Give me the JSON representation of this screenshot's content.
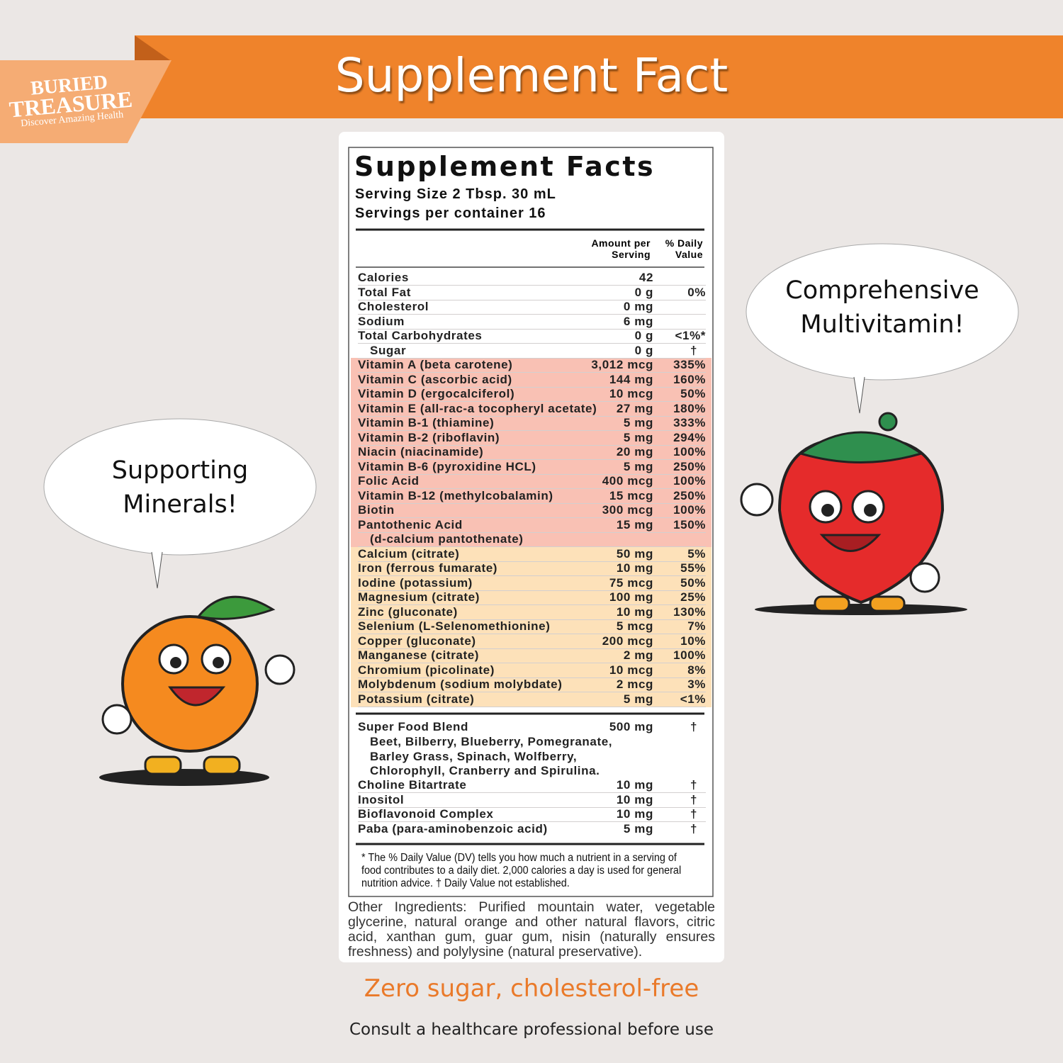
{
  "brand": {
    "name_top": "BURIED",
    "name_bottom": "TREASURE",
    "tagline": "Discover Amazing Health"
  },
  "banner_title": "Supplement Fact",
  "facts": {
    "title": "Supplement Facts",
    "serving_size": "Serving Size 2 Tbsp. 30 mL",
    "servings": "Servings per container 16",
    "header_amount": "Amount per Serving",
    "header_dv": "% Daily Value",
    "basics": [
      {
        "name": "Calories",
        "amount": "42"
      },
      {
        "name": "Total Fat",
        "amount": "0 g",
        "dv": "0%"
      },
      {
        "name": "Cholesterol",
        "amount": "0 mg"
      },
      {
        "name": "Sodium",
        "amount": "6 mg"
      },
      {
        "name": "Total Carbohydrates",
        "amount": "0 g",
        "dv": "<1%*"
      },
      {
        "name": "Sugar",
        "amount": "0 g",
        "dv": "†"
      }
    ],
    "vitamins": [
      {
        "name": "Vitamin A (beta carotene)",
        "amount": "3,012 mcg",
        "dv": "335%"
      },
      {
        "name": "Vitamin C (ascorbic acid)",
        "amount": "144 mg",
        "dv": "160%"
      },
      {
        "name": "Vitamin D (ergocalciferol)",
        "amount": "10 mcg",
        "dv": "50%"
      },
      {
        "name": "Vitamin E (all-rac-a tocopheryl acetate)",
        "amount": "27 mg",
        "dv": "180%"
      },
      {
        "name": "Vitamin B-1 (thiamine)",
        "amount": "5 mg",
        "dv": "333%"
      },
      {
        "name": "Vitamin B-2 (riboflavin)",
        "amount": "5 mg",
        "dv": "294%"
      },
      {
        "name": "Niacin (niacinamide)",
        "amount": "20 mg",
        "dv": "100%"
      },
      {
        "name": "Vitamin B-6 (pyroxidine HCL)",
        "amount": "5 mg",
        "dv": "250%"
      },
      {
        "name": "Folic Acid",
        "amount": "400 mcg",
        "dv": "100%"
      },
      {
        "name": "Vitamin B-12 (methylcobalamin)",
        "amount": "15 mcg",
        "dv": "250%"
      },
      {
        "name": "Biotin",
        "amount": "300 mcg",
        "dv": "100%"
      },
      {
        "name": "Pantothenic Acid",
        "amount": "15 mg",
        "dv": "150%",
        "sub": "(d-calcium pantothenate)"
      }
    ],
    "minerals": [
      {
        "name": "Calcium (citrate)",
        "amount": "50 mg",
        "dv": "5%"
      },
      {
        "name": "Iron (ferrous fumarate)",
        "amount": "10 mg",
        "dv": "55%"
      },
      {
        "name": "Iodine (potassium)",
        "amount": "75 mcg",
        "dv": "50%"
      },
      {
        "name": "Magnesium (citrate)",
        "amount": "100 mg",
        "dv": "25%"
      },
      {
        "name": "Zinc (gluconate)",
        "amount": "10 mg",
        "dv": "130%"
      },
      {
        "name": "Selenium (L-Selenomethionine)",
        "amount": "5 mcg",
        "dv": "7%"
      },
      {
        "name": "Copper (gluconate)",
        "amount": "200 mcg",
        "dv": "10%"
      },
      {
        "name": "Manganese (citrate)",
        "amount": "2 mg",
        "dv": "100%"
      },
      {
        "name": "Chromium (picolinate)",
        "amount": "10 mcg",
        "dv": "8%"
      },
      {
        "name": "Molybdenum (sodium molybdate)",
        "amount": "2 mcg",
        "dv": "3%"
      },
      {
        "name": "Potassium (citrate)",
        "amount": "5 mg",
        "dv": "<1%"
      }
    ],
    "blend": {
      "name": "Super Food Blend",
      "amount": "500 mg",
      "dv": "†",
      "ingredients": "Beet, Bilberry, Blueberry, Pomegranate, Barley Grass, Spinach, Wolfberry, Chlorophyll, Cranberry and Spirulina."
    },
    "others": [
      {
        "name": "Choline Bitartrate",
        "amount": "10 mg",
        "dv": "†"
      },
      {
        "name": "Inositol",
        "amount": "10 mg",
        "dv": "†"
      },
      {
        "name": "Bioflavonoid Complex",
        "amount": "10 mg",
        "dv": "†"
      },
      {
        "name": "Paba (para-aminobenzoic acid)",
        "amount": "5 mg",
        "dv": "†"
      }
    ],
    "footnote": "* The % Daily Value (DV) tells you how much a nutrient in a serving of food contributes to a daily diet. 2,000 calories a day is used for general nutrition advice.  † Daily Value not established."
  },
  "other_ingredients": "Other Ingredients:  Purified mountain water, vegetable glycerine, natural orange and other natural flavors, citric acid, xanthan gum, guar gum, nisin (naturally ensures freshness) and polylysine (natural preservative).",
  "bubble_right": "Comprehensive Multivitamin!",
  "bubble_left": "Supporting Minerals!",
  "tagline": "Zero sugar, cholesterol-free",
  "note": "Consult a healthcare professional before use"
}
